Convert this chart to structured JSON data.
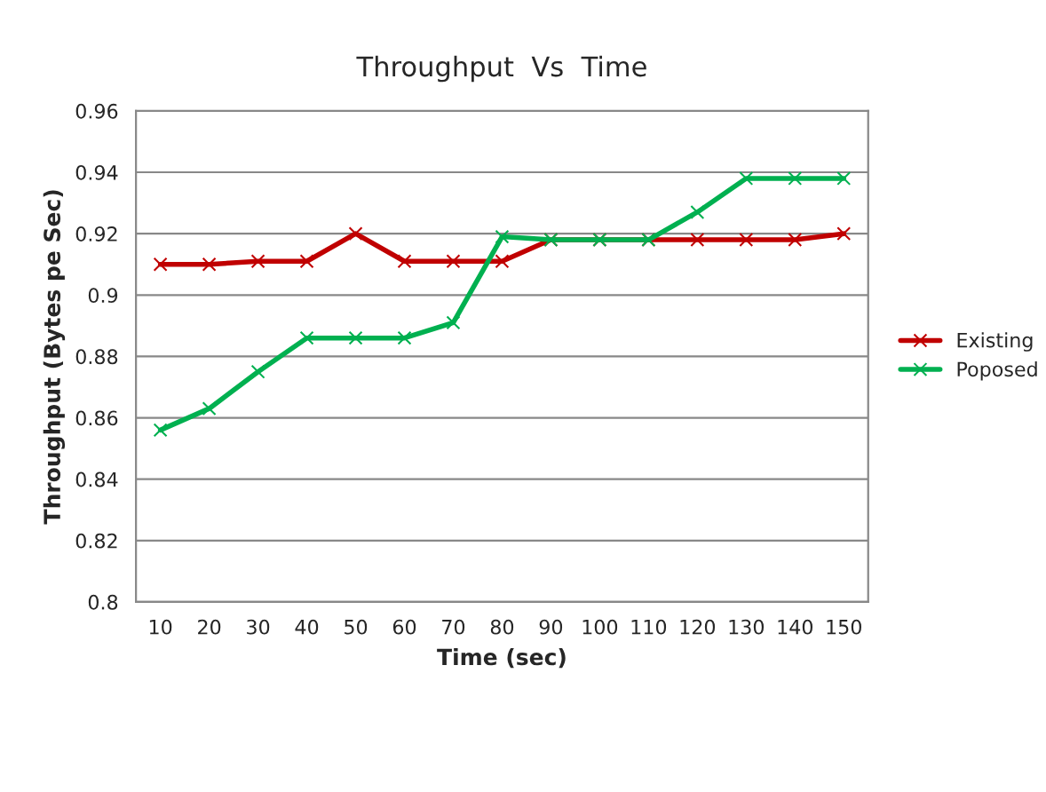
{
  "chart_data": {
    "type": "line",
    "title": "Throughput  Vs  Time",
    "xlabel": "Time (sec)",
    "ylabel": "Throughput (Bytes pe Sec)",
    "categories": [
      "10",
      "20",
      "30",
      "40",
      "50",
      "60",
      "70",
      "80",
      "90",
      "100",
      "110",
      "120",
      "130",
      "140",
      "150"
    ],
    "series": [
      {
        "name": "Existing",
        "color": "#c00000",
        "values": [
          0.91,
          0.91,
          0.911,
          0.911,
          0.92,
          0.911,
          0.911,
          0.911,
          0.918,
          0.918,
          0.918,
          0.918,
          0.918,
          0.918,
          0.92
        ]
      },
      {
        "name": "Poposed",
        "color": "#00b050",
        "values": [
          0.856,
          0.863,
          0.875,
          0.886,
          0.886,
          0.886,
          0.891,
          0.919,
          0.918,
          0.918,
          0.918,
          0.927,
          0.938,
          0.938,
          0.938
        ]
      }
    ],
    "ylim": [
      0.8,
      0.96
    ],
    "yticks": [
      0.8,
      0.82,
      0.84,
      0.86,
      0.88,
      0.9,
      0.92,
      0.94,
      0.96
    ],
    "grid": "y",
    "legend": "right",
    "marker": "cross",
    "line_style": "solid"
  }
}
